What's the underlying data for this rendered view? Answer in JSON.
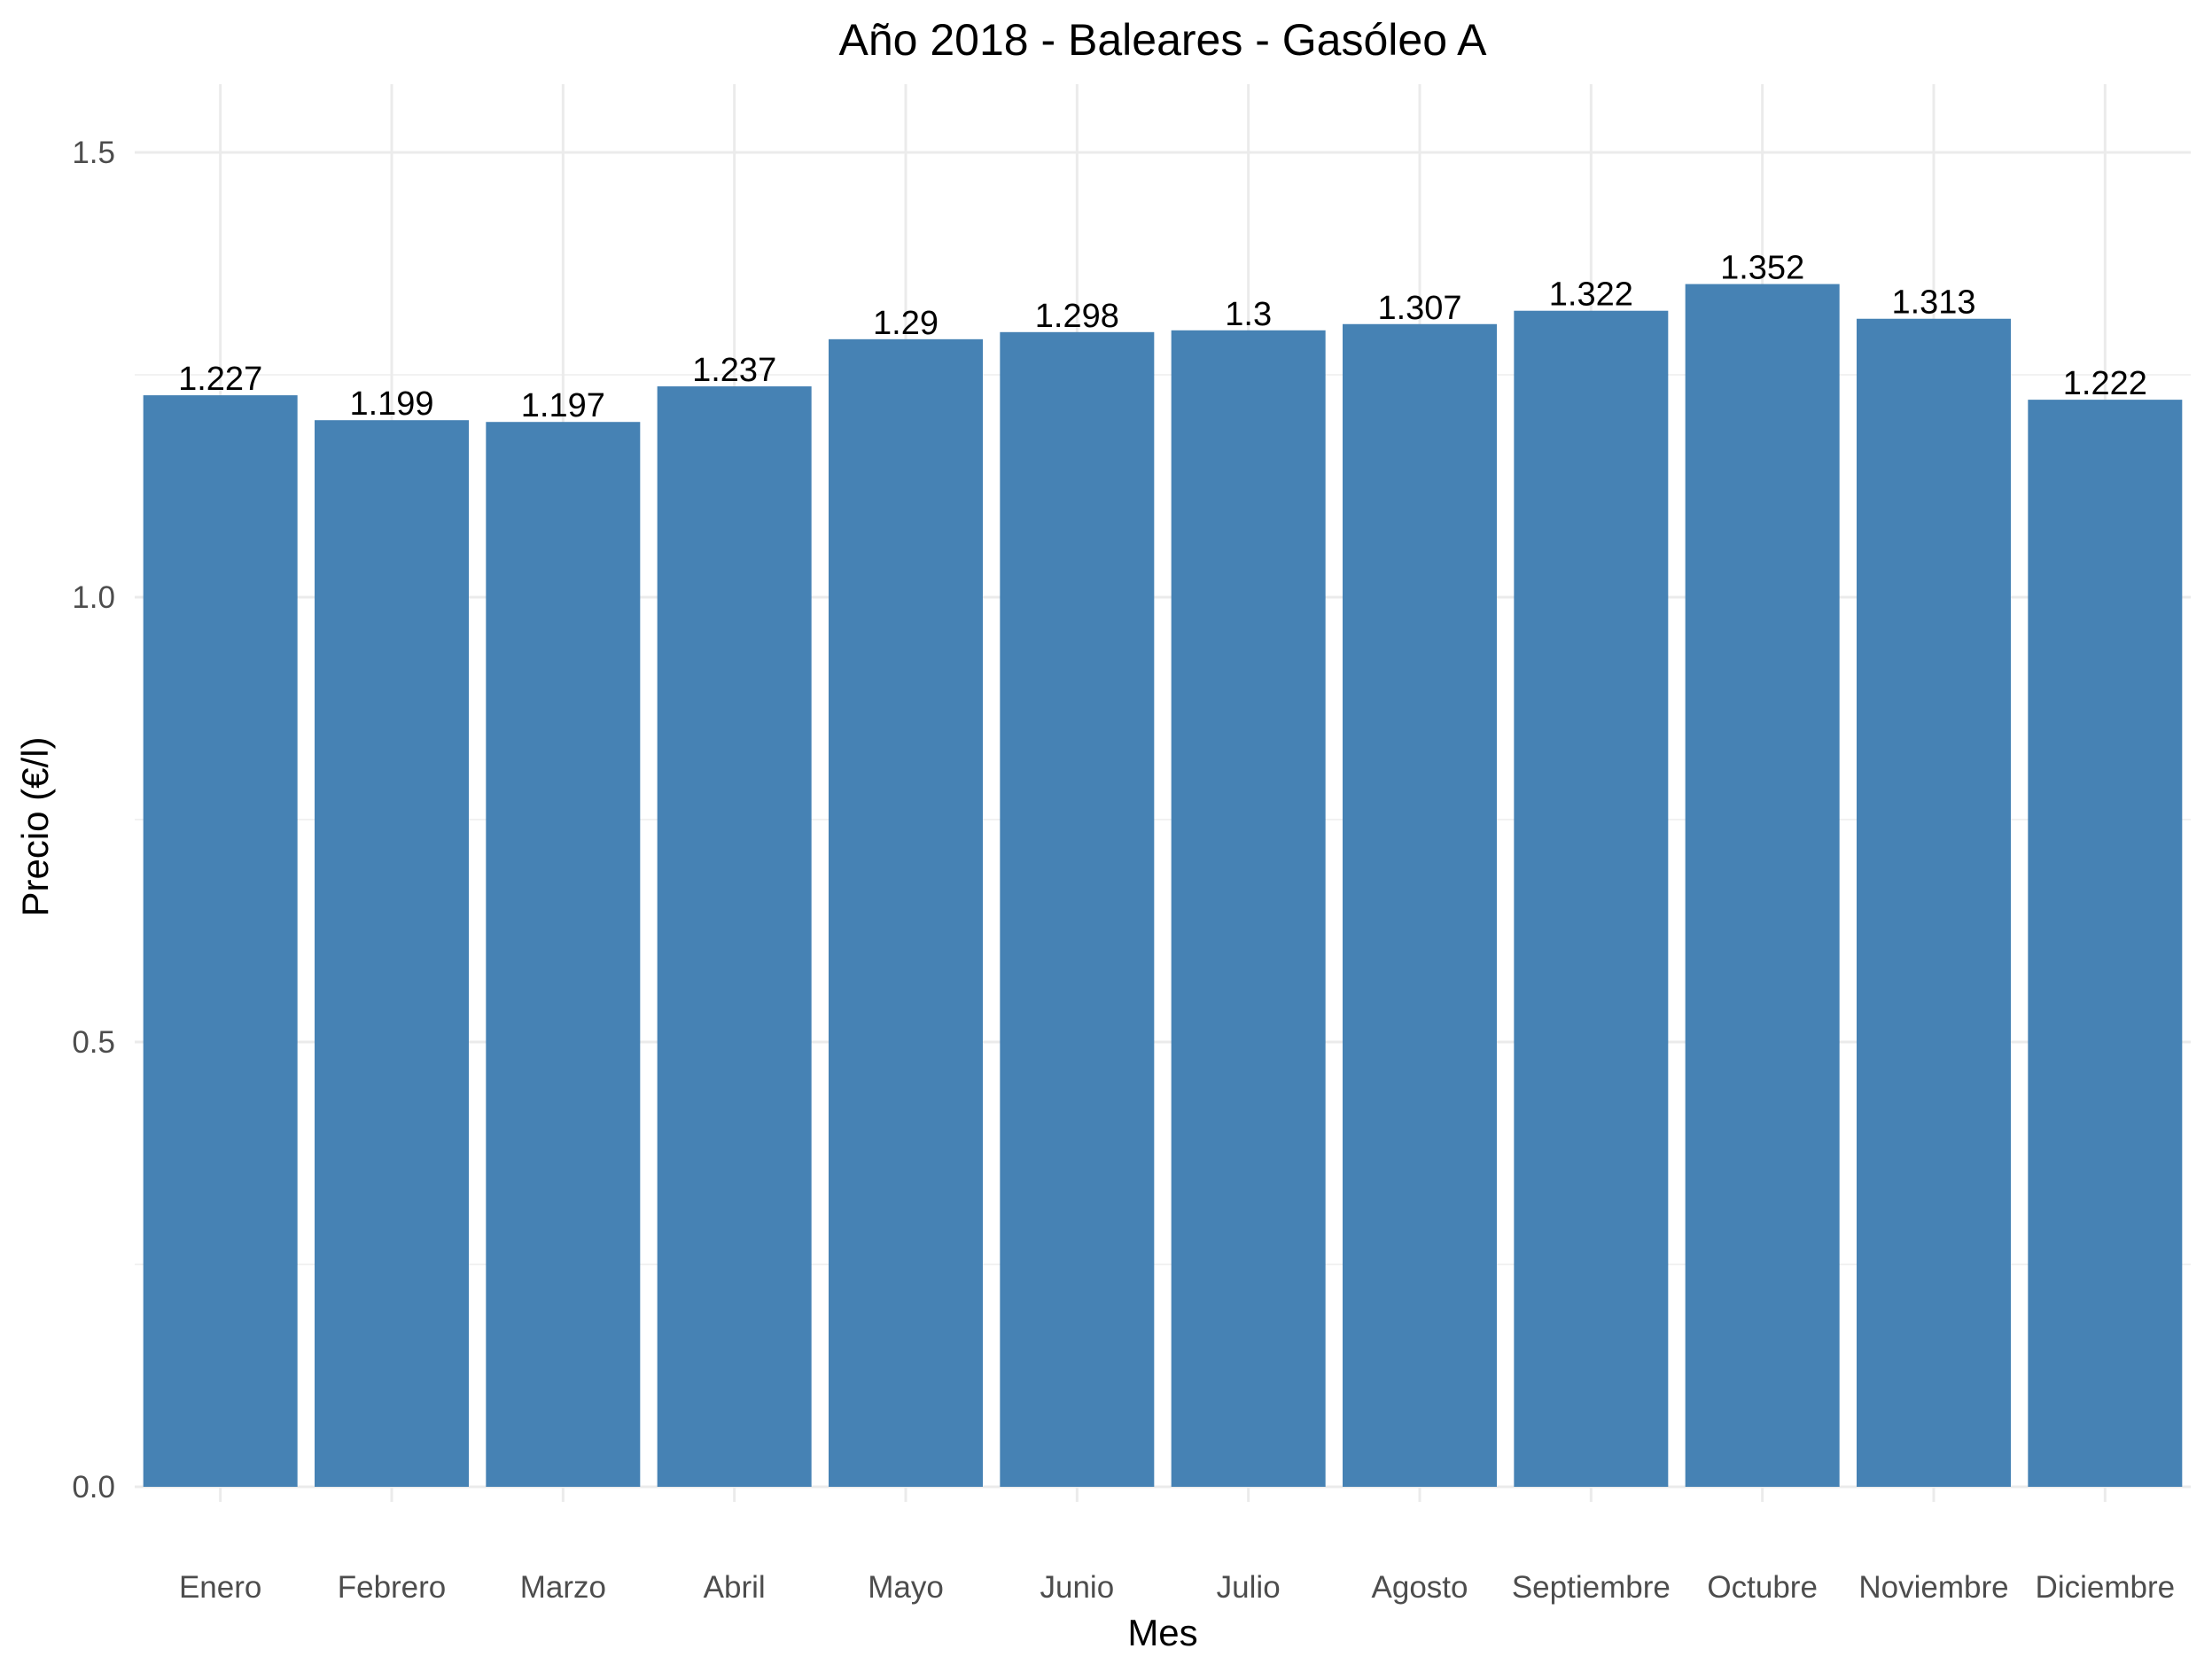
{
  "chart_data": {
    "type": "bar",
    "title": "Año 2018 - Baleares - Gasóleo A",
    "xlabel": "Mes",
    "ylabel": "Precio (€/l)",
    "categories": [
      "Enero",
      "Febrero",
      "Marzo",
      "Abril",
      "Mayo",
      "Junio",
      "Julio",
      "Agosto",
      "Septiembre",
      "Octubre",
      "Noviembre",
      "Diciembre"
    ],
    "values": [
      1.227,
      1.199,
      1.197,
      1.237,
      1.29,
      1.298,
      1.3,
      1.307,
      1.322,
      1.352,
      1.313,
      1.222
    ],
    "data_labels": [
      "1.227",
      "1.199",
      "1.197",
      "1.237",
      "1.29",
      "1.298",
      "1.3",
      "1.307",
      "1.322",
      "1.352",
      "1.313",
      "1.222"
    ],
    "yticks": [
      0.0,
      0.5,
      1.0,
      1.5
    ],
    "ytick_labels": [
      "0.0",
      "0.5",
      "1.0",
      "1.5"
    ],
    "ylim": [
      0,
      1.58
    ],
    "grid": true,
    "legend": "none",
    "bar_color": "#4682B4"
  }
}
